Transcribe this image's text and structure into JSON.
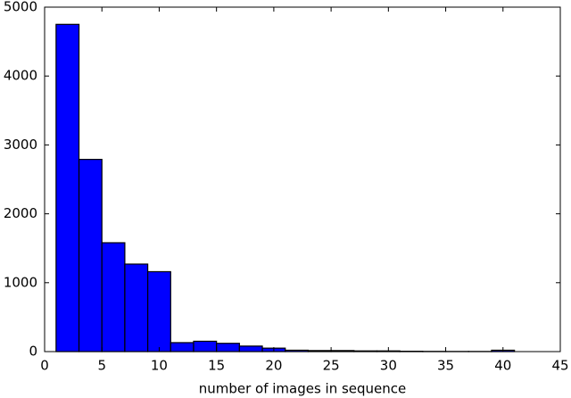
{
  "chart_data": {
    "type": "histogram",
    "x_label": "number of images in sequence",
    "bins": [
      1,
      3,
      5,
      7,
      9,
      11,
      13,
      15,
      17,
      19,
      21,
      23,
      25,
      27,
      29,
      31,
      33,
      35,
      37,
      39,
      41
    ],
    "counts": [
      4750,
      2790,
      1580,
      1270,
      1160,
      130,
      150,
      120,
      80,
      50,
      20,
      15,
      15,
      10,
      10,
      5,
      3,
      2,
      2,
      20
    ],
    "color": "#0000ff",
    "xlim": [
      0,
      45
    ],
    "xticks": [
      0,
      5,
      10,
      15,
      20,
      25,
      30,
      35,
      40,
      45
    ],
    "ylim": [
      0,
      5000
    ],
    "yticks": [
      0,
      1000,
      2000,
      3000,
      4000,
      5000
    ]
  }
}
